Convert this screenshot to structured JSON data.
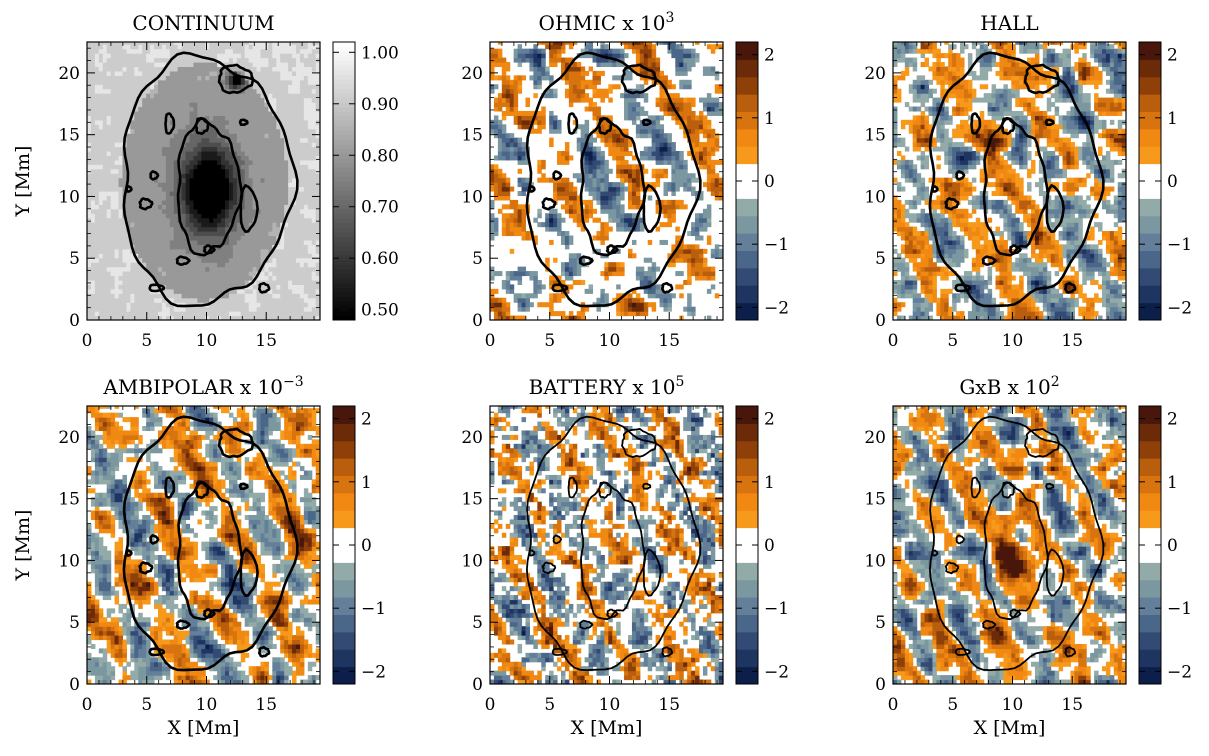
{
  "figure": {
    "colors": {
      "contour": "#000000",
      "frame": "#000000",
      "background": "#ffffff"
    }
  },
  "colormaps": {
    "gray": [
      "#000000",
      "#1a1a1a",
      "#333333",
      "#4d4d4d",
      "#666666",
      "#808080",
      "#999999",
      "#b3b3b3",
      "#cccccc",
      "#e6e6e6",
      "#ffffff"
    ],
    "diverging": [
      "#0b1f4a",
      "#1f3561",
      "#324a74",
      "#4a6688",
      "#637f99",
      "#7b979f",
      "#93aba8",
      "#ffffff",
      "#ffffff",
      "#f79a1c",
      "#f08812",
      "#d8740f",
      "#b85e0c",
      "#8f4009",
      "#6b2a08",
      "#48160a"
    ]
  },
  "chart_data": [
    {
      "type": "heatmap",
      "title": "CONTINUUM",
      "title_sup": "",
      "xlabel": "",
      "ylabel": "Y [Mm]",
      "xlim": [
        0,
        19.5
      ],
      "ylim": [
        0,
        22.5
      ],
      "xticks": [
        0,
        5,
        10,
        15
      ],
      "yticks": [
        0,
        5,
        10,
        15,
        20
      ],
      "colormap": "gray",
      "colorbar": {
        "ticks": [
          "0.50",
          "0.60",
          "0.70",
          "0.80",
          "0.90",
          "1.00"
        ],
        "range": [
          0.48,
          1.02
        ]
      }
    },
    {
      "type": "heatmap",
      "title": "OHMIC x 10",
      "title_sup": "3",
      "xlabel": "",
      "ylabel": "",
      "xlim": [
        0,
        19.5
      ],
      "ylim": [
        0,
        22.5
      ],
      "xticks": [
        0,
        5,
        10,
        15
      ],
      "yticks": [
        0,
        5,
        10,
        15,
        20
      ],
      "colormap": "diverging",
      "colorbar": {
        "ticks": [
          "−2",
          "−1",
          "0",
          "1",
          "2"
        ],
        "range": [
          -2.2,
          2.2
        ]
      }
    },
    {
      "type": "heatmap",
      "title": "HALL",
      "title_sup": "",
      "xlabel": "",
      "ylabel": "",
      "xlim": [
        0,
        19.5
      ],
      "ylim": [
        0,
        22.5
      ],
      "xticks": [
        0,
        5,
        10,
        15
      ],
      "yticks": [
        0,
        5,
        10,
        15,
        20
      ],
      "colormap": "diverging",
      "colorbar": {
        "ticks": [
          "−2",
          "−1",
          "0",
          "1",
          "2"
        ],
        "range": [
          -2.2,
          2.2
        ]
      }
    },
    {
      "type": "heatmap",
      "title": "AMBIPOLAR x 10",
      "title_sup": "−3",
      "xlabel": "X [Mm]",
      "ylabel": "Y [Mm]",
      "xlim": [
        0,
        19.5
      ],
      "ylim": [
        0,
        22.5
      ],
      "xticks": [
        0,
        5,
        10,
        15
      ],
      "yticks": [
        0,
        5,
        10,
        15,
        20
      ],
      "colormap": "diverging",
      "colorbar": {
        "ticks": [
          "−2",
          "−1",
          "0",
          "1",
          "2"
        ],
        "range": [
          -2.2,
          2.2
        ]
      }
    },
    {
      "type": "heatmap",
      "title": "BATTERY x 10",
      "title_sup": "5",
      "xlabel": "X [Mm]",
      "ylabel": "",
      "xlim": [
        0,
        19.5
      ],
      "ylim": [
        0,
        22.5
      ],
      "xticks": [
        0,
        5,
        10,
        15
      ],
      "yticks": [
        0,
        5,
        10,
        15,
        20
      ],
      "colormap": "diverging",
      "colorbar": {
        "ticks": [
          "−2",
          "−1",
          "0",
          "1",
          "2"
        ],
        "range": [
          -2.2,
          2.2
        ]
      }
    },
    {
      "type": "heatmap",
      "title": "GxB x 10",
      "title_sup": "2",
      "xlabel": "X [Mm]",
      "ylabel": "",
      "xlim": [
        0,
        19.5
      ],
      "ylim": [
        0,
        22.5
      ],
      "xticks": [
        0,
        5,
        10,
        15
      ],
      "yticks": [
        0,
        5,
        10,
        15,
        20
      ],
      "colormap": "diverging",
      "colorbar": {
        "ticks": [
          "−2",
          "−1",
          "0",
          "1",
          "2"
        ],
        "range": [
          -2.2,
          2.2
        ]
      }
    }
  ]
}
